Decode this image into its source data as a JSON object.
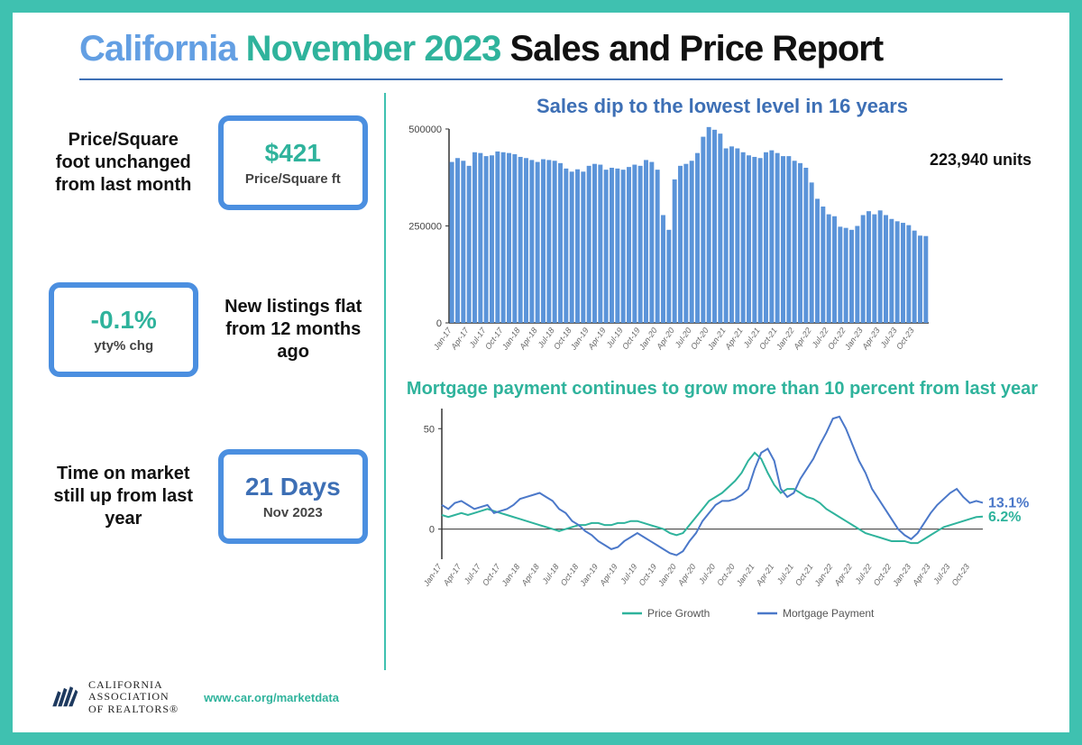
{
  "title": {
    "part1": "California",
    "part2": "November 2023",
    "part3": "Sales and Price Report",
    "color1": "#639fe3",
    "color2": "#2fb39c",
    "color3": "#111111",
    "fontsize": 40
  },
  "divider_color": "#3d6fb5",
  "frame_border_color": "#3fc1b0",
  "stats": [
    {
      "label": "Price/Square foot unchanged from last month",
      "value": "$421",
      "value_color": "#2fb39c",
      "sub": "Price/Square ft",
      "label_first": true
    },
    {
      "label": "New listings flat from 12 months ago",
      "value": "-0.1%",
      "value_color": "#2fb39c",
      "sub": "yty% chg",
      "label_first": false
    },
    {
      "label": "Time on market still up from last year",
      "value": "21 Days",
      "value_color": "#3d6fb5",
      "sub": "Nov 2023",
      "label_first": true
    }
  ],
  "stat_box_border_color": "#4b8fe0",
  "bar_chart": {
    "type": "bar",
    "title": "Sales dip to the lowest level in 16 years",
    "title_color": "#3d6fb5",
    "annotation": "223,940 units",
    "bar_color": "#5b94d9",
    "axis_color": "#333333",
    "ylim": [
      0,
      500000
    ],
    "yticks": [
      0,
      250000,
      500000
    ],
    "ytick_labels": [
      "0",
      "250000",
      "500000"
    ],
    "x_labels": [
      "Jan-17",
      "Apr-17",
      "Jul-17",
      "Oct-17",
      "Jan-18",
      "Apr-18",
      "Jul-18",
      "Oct-18",
      "Jan-19",
      "Apr-19",
      "Jul-19",
      "Oct-19",
      "Jan-20",
      "Apr-20",
      "Jul-20",
      "Oct-20",
      "Jan-21",
      "Apr-21",
      "Jul-21",
      "Oct-21",
      "Jan-22",
      "Apr-22",
      "Jul-22",
      "Oct-22",
      "Jan-23",
      "Apr-23",
      "Jul-23",
      "Oct-23"
    ],
    "values": [
      415000,
      425000,
      418000,
      405000,
      440000,
      438000,
      430000,
      432000,
      442000,
      440000,
      438000,
      435000,
      428000,
      425000,
      420000,
      415000,
      422000,
      420000,
      418000,
      412000,
      398000,
      390000,
      396000,
      390000,
      405000,
      410000,
      408000,
      395000,
      400000,
      398000,
      395000,
      402000,
      408000,
      405000,
      420000,
      415000,
      395000,
      278000,
      240000,
      370000,
      405000,
      410000,
      418000,
      438000,
      480000,
      505000,
      498000,
      488000,
      450000,
      455000,
      450000,
      440000,
      432000,
      428000,
      425000,
      440000,
      445000,
      438000,
      430000,
      430000,
      418000,
      412000,
      400000,
      362000,
      320000,
      300000,
      280000,
      275000,
      248000,
      245000,
      240000,
      250000,
      278000,
      288000,
      280000,
      290000,
      278000,
      268000,
      262000,
      258000,
      252000,
      238000,
      225000,
      223940
    ]
  },
  "line_chart": {
    "type": "line",
    "title": "Mortgage payment continues to grow more than 10 percent from last year",
    "title_color": "#2fb39c",
    "axis_color": "#333333",
    "grid_color": "#cccccc",
    "ylim": [
      -15,
      60
    ],
    "yticks": [
      0,
      50
    ],
    "ytick_labels": [
      "0",
      "50"
    ],
    "x_labels": [
      "Jan-17",
      "Apr-17",
      "Jul-17",
      "Oct-17",
      "Jan-18",
      "Apr-18",
      "Jul-18",
      "Oct-18",
      "Jan-19",
      "Apr-19",
      "Jul-19",
      "Oct-19",
      "Jan-20",
      "Apr-20",
      "Jul-20",
      "Oct-20",
      "Jan-21",
      "Apr-21",
      "Jul-21",
      "Oct-21",
      "Jan-22",
      "Apr-22",
      "Jul-22",
      "Oct-22",
      "Jan-23",
      "Apr-23",
      "Jul-23",
      "Oct-23"
    ],
    "series": [
      {
        "name": "Price Growth",
        "color": "#2fb39c",
        "end_label": "6.2%",
        "values": [
          7,
          6,
          7,
          8,
          7,
          8,
          9,
          10,
          9,
          8,
          7,
          6,
          5,
          4,
          3,
          2,
          1,
          0,
          -1,
          0,
          1,
          2,
          2,
          3,
          3,
          2,
          2,
          3,
          3,
          4,
          4,
          3,
          2,
          1,
          0,
          -2,
          -3,
          -2,
          2,
          6,
          10,
          14,
          16,
          18,
          21,
          24,
          28,
          34,
          38,
          35,
          28,
          22,
          18,
          20,
          20,
          18,
          16,
          15,
          13,
          10,
          8,
          6,
          4,
          2,
          0,
          -2,
          -3,
          -4,
          -5,
          -6,
          -6,
          -6,
          -7,
          -7,
          -5,
          -3,
          -1,
          1,
          2,
          3,
          4,
          5,
          6,
          6.2
        ]
      },
      {
        "name": "Mortgage Payment",
        "color": "#4b78c9",
        "end_label": "13.1%",
        "values": [
          12,
          10,
          13,
          14,
          12,
          10,
          11,
          12,
          8,
          9,
          10,
          12,
          15,
          16,
          17,
          18,
          16,
          14,
          10,
          8,
          4,
          2,
          -1,
          -3,
          -6,
          -8,
          -10,
          -9,
          -6,
          -4,
          -2,
          -4,
          -6,
          -8,
          -10,
          -12,
          -13,
          -11,
          -6,
          -2,
          4,
          8,
          12,
          14,
          14,
          15,
          17,
          20,
          30,
          38,
          40,
          34,
          20,
          16,
          18,
          25,
          30,
          35,
          42,
          48,
          55,
          56,
          50,
          42,
          34,
          28,
          20,
          15,
          10,
          5,
          0,
          -3,
          -5,
          -2,
          3,
          8,
          12,
          15,
          18,
          20,
          16,
          13,
          14,
          13.1
        ]
      }
    ],
    "legend": [
      {
        "label": "Price Growth",
        "color": "#2fb39c"
      },
      {
        "label": "Mortgage Payment",
        "color": "#4b78c9"
      }
    ]
  },
  "footer": {
    "org_line1": "CALIFORNIA",
    "org_line2": "ASSOCIATION",
    "org_line3": "OF REALTORS®",
    "url": "www.car.org/marketdata",
    "logo_color": "#1e3a5f"
  }
}
